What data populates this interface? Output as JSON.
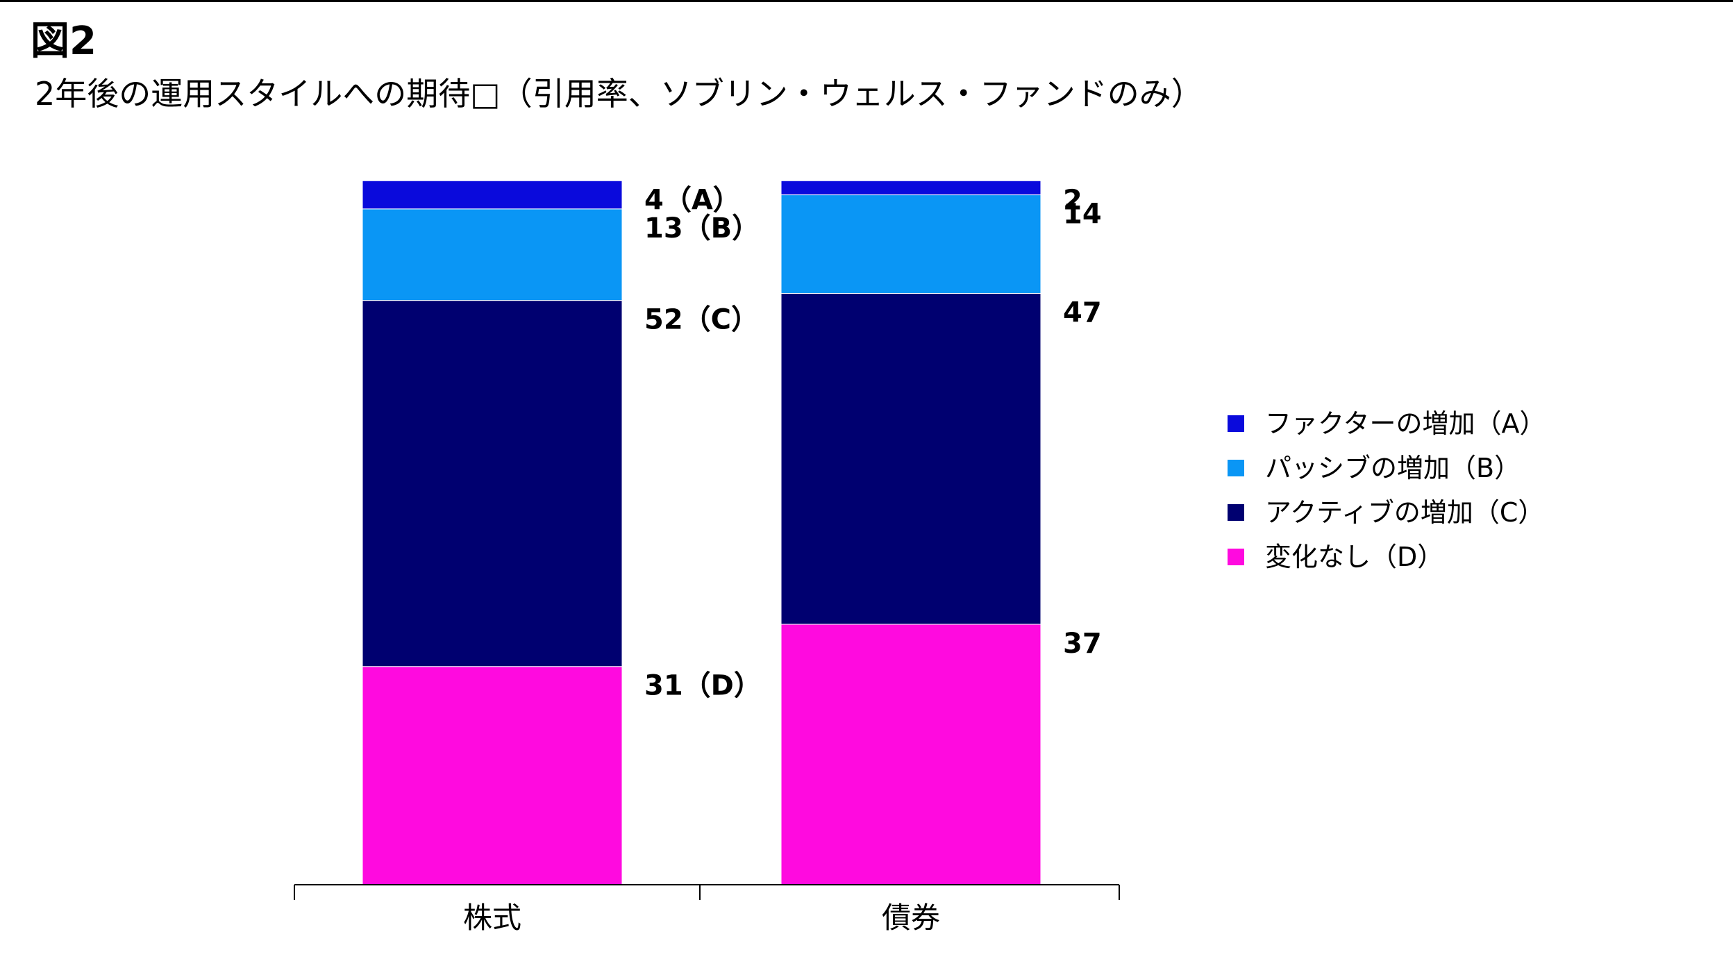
{
  "figure": {
    "label": "図2",
    "title": "2年後の運用スタイルへの期待□（引用率、ソブリン・ウェルス・ファンドのみ）"
  },
  "chart_data": {
    "type": "bar",
    "stacked": true,
    "categories": [
      "株式",
      "債券"
    ],
    "series": [
      {
        "name": "変化なし（D）",
        "key": "D",
        "color": "#FF0ADF",
        "values": [
          31,
          37
        ]
      },
      {
        "name": "アクティブの増加（C）",
        "key": "C",
        "color": "#000070",
        "values": [
          52,
          47
        ]
      },
      {
        "name": "パッシブの増加（B）",
        "key": "B",
        "color": "#0A96F5",
        "values": [
          13,
          14
        ]
      },
      {
        "name": "ファクターの増加（A）",
        "key": "A",
        "color": "#0A0ADC",
        "values": [
          4,
          2
        ]
      }
    ],
    "data_labels": [
      {
        "D": "31（D）",
        "C": "52（C）",
        "B": "13（B）",
        "A": "4（A）"
      },
      {
        "D": "37",
        "C": "47",
        "B": "14",
        "A": "2"
      }
    ],
    "ylim": [
      0,
      102
    ],
    "legend_order": [
      "A",
      "B",
      "C",
      "D"
    ],
    "legend_position": "right",
    "grid": false
  }
}
